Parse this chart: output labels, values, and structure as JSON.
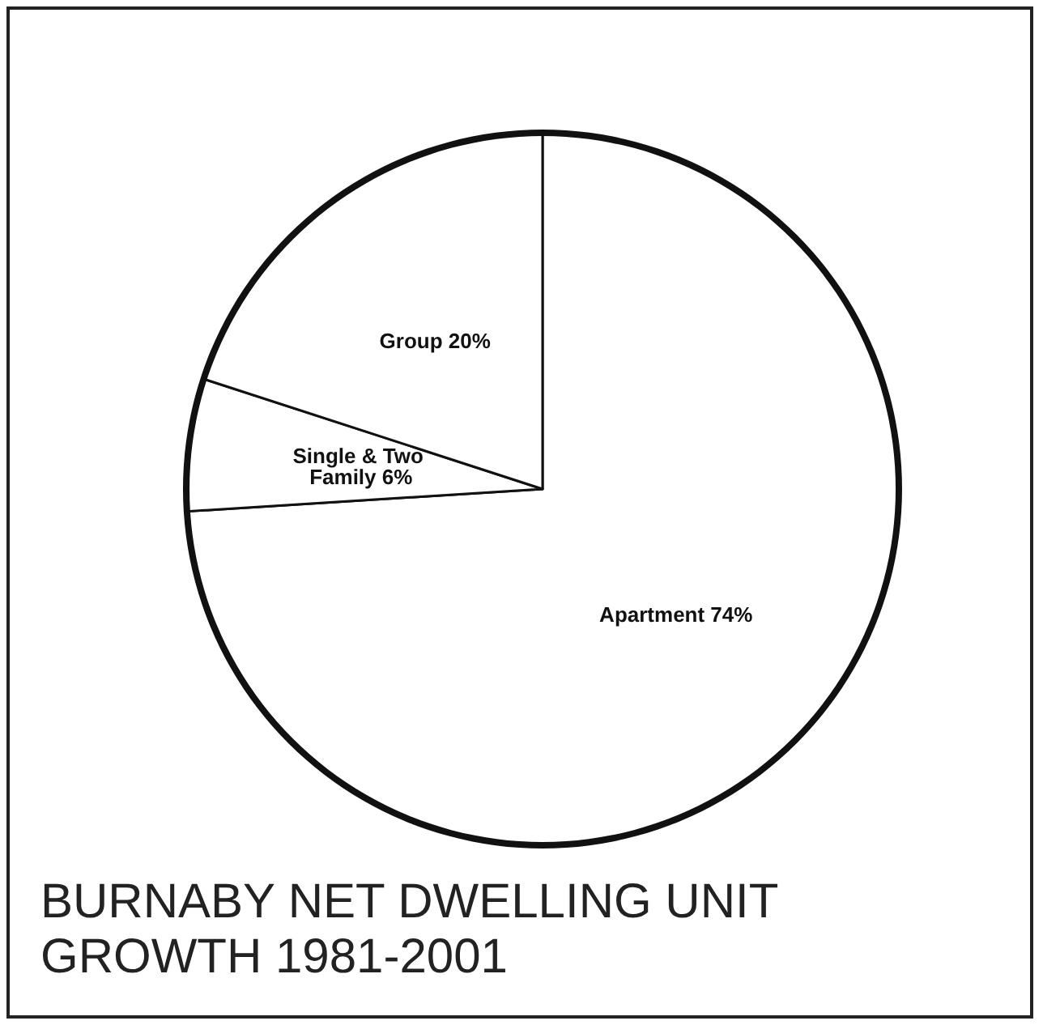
{
  "chart_data": {
    "type": "pie",
    "title": "BURNABY NET DWELLING UNIT GROWTH 1981-2001",
    "categories": [
      "Apartment",
      "Single & Two Family",
      "Group"
    ],
    "values": [
      74,
      6,
      20
    ],
    "colors": [
      "#ffffff",
      "#ffffff",
      "#ffffff"
    ],
    "value_labels": [
      "74%",
      "6%",
      "20%"
    ],
    "legend": false
  }
}
